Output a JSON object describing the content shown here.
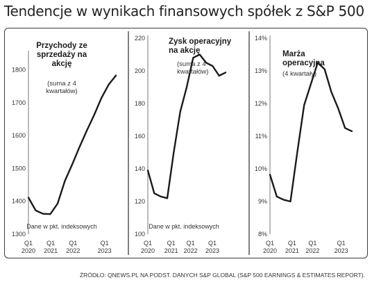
{
  "title": "Tendencje w wynikach finansowych spółek z S&P 500",
  "source": "ŹRÓDŁO: QNEWS.PL NA PODST. DANYCH S&P GLOBAL (S&P 500 EARNINGS & ESTIMATES REPORT).",
  "chart_data": [
    {
      "type": "line",
      "title": [
        "Przychody ze",
        "sprzedaży na",
        "akcję"
      ],
      "subtitle": [
        "(suma z 4",
        "kwartałów)"
      ],
      "footnote": "Dane w pkt. indeksowych",
      "x_ticks": [
        [
          "Q1",
          "2020"
        ],
        [
          "Q1",
          "2021"
        ],
        [
          "Q1",
          "2022"
        ],
        [
          "Q1",
          "2023"
        ]
      ],
      "y_ticks": [
        "1300",
        "1400",
        "1500",
        "1600",
        "1700",
        "1800"
      ],
      "ylim": [
        1300,
        1850
      ],
      "x": [
        2020.0,
        2020.25,
        2020.5,
        2020.75,
        2021.0,
        2021.25,
        2021.5,
        2021.75,
        2022.0,
        2022.25,
        2022.5,
        2022.75,
        2023.0
      ],
      "values": [
        1411,
        1372,
        1362,
        1361,
        1393,
        1462,
        1512,
        1565,
        1615,
        1662,
        1714,
        1755,
        1783
      ],
      "color": "#1a1a1a"
    },
    {
      "type": "line",
      "title": [
        "Zysk operacyjny",
        "na akcję"
      ],
      "subtitle": [
        "(suma z 4",
        "kwartałów)"
      ],
      "footnote": "Dane w pkt. indeksowych",
      "x_ticks": [
        [
          "Q1",
          "2020"
        ],
        [
          "Q1",
          "2021"
        ],
        [
          "Q1",
          "2022"
        ],
        [
          "Q1",
          "2023"
        ]
      ],
      "y_ticks": [
        "100",
        "120",
        "140",
        "160",
        "180",
        "200",
        "220"
      ],
      "ylim": [
        100,
        220
      ],
      "x": [
        2020.0,
        2020.25,
        2020.5,
        2020.75,
        2021.0,
        2021.25,
        2021.5,
        2021.75,
        2022.0,
        2022.25,
        2022.5,
        2022.75,
        2023.0
      ],
      "values": [
        139,
        125,
        123,
        122,
        150,
        175,
        190,
        208,
        210,
        205,
        203,
        197,
        199
      ],
      "color": "#1a1a1a"
    },
    {
      "type": "line",
      "title": [
        "Marża",
        "operacyjna"
      ],
      "subtitle": [
        "(4 kwartały)"
      ],
      "footnote": "",
      "x_ticks": [
        [
          "Q1",
          "2020"
        ],
        [
          "Q1",
          "2021"
        ],
        [
          "Q1",
          "2022"
        ],
        [
          "Q1",
          "2023"
        ]
      ],
      "y_ticks": [
        "8%",
        "9%",
        "10%",
        "11%",
        "12%",
        "13%",
        "14%"
      ],
      "ylim": [
        8,
        14
      ],
      "x": [
        2020.0,
        2020.25,
        2020.5,
        2020.75,
        2021.0,
        2021.25,
        2021.5,
        2021.75,
        2022.0,
        2022.25,
        2022.5,
        2022.75,
        2023.0
      ],
      "values": [
        9.82,
        9.15,
        9.05,
        9.0,
        10.5,
        11.95,
        12.6,
        13.25,
        13.05,
        12.35,
        11.85,
        11.25,
        11.15
      ],
      "color": "#1a1a1a"
    }
  ]
}
